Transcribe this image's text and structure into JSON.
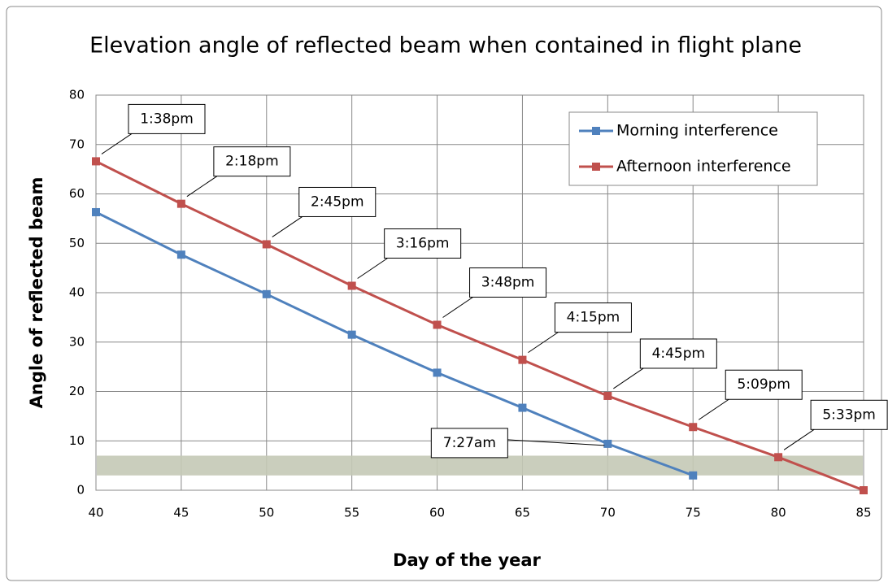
{
  "chart_data": {
    "type": "line",
    "title": "Elevation angle of reflected beam when contained in flight plane",
    "x_label": "Day of the year",
    "y_label": "Angle of reflected beam",
    "x": [
      40,
      45,
      50,
      55,
      60,
      65,
      70,
      75,
      80,
      85
    ],
    "series": [
      {
        "name": "Morning interference",
        "color": "#4f81bd",
        "values": [
          56.3,
          47.7,
          39.7,
          31.5,
          23.8,
          16.7,
          9.4,
          3.0,
          null,
          null
        ],
        "point_labels": [
          null,
          null,
          null,
          null,
          null,
          null,
          "7:27am",
          null,
          null,
          null
        ]
      },
      {
        "name": "Afternoon interference",
        "color": "#c0504d",
        "values": [
          66.6,
          58.0,
          49.8,
          41.4,
          33.5,
          26.4,
          19.1,
          12.8,
          6.7,
          0
        ],
        "point_labels": [
          "1:38pm",
          "2:18pm",
          "2:45pm",
          "3:16pm",
          "3:48pm",
          "4:15pm",
          "4:45pm",
          "5:09pm",
          "5:33pm",
          null
        ]
      }
    ],
    "band": {
      "ylim": [
        3,
        7
      ],
      "color": "#c4c9b6"
    },
    "xlim": [
      40,
      85
    ],
    "xticks": [
      40,
      45,
      50,
      55,
      60,
      65,
      70,
      75,
      80,
      85
    ],
    "ylim": [
      0,
      80
    ],
    "yticks": [
      0,
      10,
      20,
      30,
      40,
      50,
      60,
      70,
      80
    ],
    "grid": true,
    "legend": "upper right"
  }
}
